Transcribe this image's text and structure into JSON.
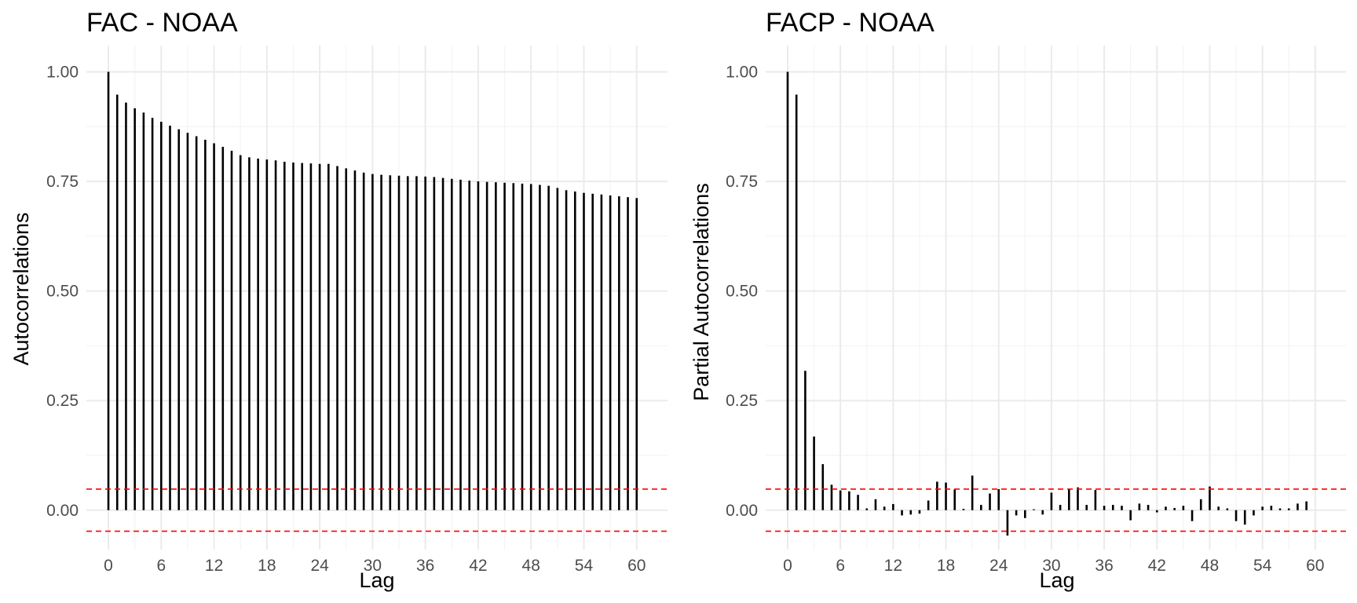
{
  "colors": {
    "bar": "#000000",
    "ci": "#ff0000",
    "grid_major": "#ebebeb",
    "grid_minor": "#f4f4f4",
    "tick_text": "#4d4d4d"
  },
  "chart_data": [
    {
      "type": "bar",
      "title": "FAC - NOAA",
      "xlabel": "Lag",
      "ylabel": "Autocorrelations",
      "xlim": [
        -2.5,
        63.5
      ],
      "ylim": [
        -0.09,
        1.06
      ],
      "x_ticks": [
        0,
        6,
        12,
        18,
        24,
        30,
        36,
        42,
        48,
        54,
        60
      ],
      "x_tick_labels": [
        "0",
        "6",
        "12",
        "18",
        "24",
        "30",
        "36",
        "42",
        "48",
        "54",
        "60"
      ],
      "y_ticks": [
        0,
        0.25,
        0.5,
        0.75,
        1
      ],
      "y_tick_labels": [
        "0.00",
        "0.25",
        "0.50",
        "0.75",
        "1.00"
      ],
      "ci": [
        0.048,
        -0.048
      ],
      "grid": true,
      "lag_start": 0,
      "values": [
        1.0,
        0.948,
        0.93,
        0.917,
        0.907,
        0.895,
        0.886,
        0.877,
        0.869,
        0.861,
        0.853,
        0.845,
        0.837,
        0.829,
        0.82,
        0.81,
        0.805,
        0.802,
        0.8,
        0.798,
        0.795,
        0.793,
        0.792,
        0.791,
        0.79,
        0.79,
        0.785,
        0.78,
        0.775,
        0.77,
        0.767,
        0.765,
        0.764,
        0.763,
        0.762,
        0.762,
        0.761,
        0.76,
        0.758,
        0.756,
        0.754,
        0.752,
        0.75,
        0.749,
        0.748,
        0.747,
        0.746,
        0.745,
        0.744,
        0.742,
        0.74,
        0.735,
        0.73,
        0.727,
        0.724,
        0.722,
        0.72,
        0.718,
        0.716,
        0.714,
        0.712
      ]
    },
    {
      "type": "bar",
      "title": "FACP - NOAA",
      "xlabel": "Lag",
      "ylabel": "Partial Autocorrelations",
      "xlim": [
        -2.5,
        63.5
      ],
      "ylim": [
        -0.09,
        1.06
      ],
      "x_ticks": [
        0,
        6,
        12,
        18,
        24,
        30,
        36,
        42,
        48,
        54,
        60
      ],
      "x_tick_labels": [
        "0",
        "6",
        "12",
        "18",
        "24",
        "30",
        "36",
        "42",
        "48",
        "54",
        "60"
      ],
      "y_ticks": [
        0,
        0.25,
        0.5,
        0.75,
        1
      ],
      "y_tick_labels": [
        "0.00",
        "0.25",
        "0.50",
        "0.75",
        "1.00"
      ],
      "ci": [
        0.048,
        -0.048
      ],
      "grid": true,
      "lag_start": 0,
      "values": [
        1.0,
        0.948,
        0.318,
        0.168,
        0.105,
        0.058,
        0.045,
        0.043,
        0.035,
        0.004,
        0.025,
        0.008,
        0.014,
        -0.012,
        -0.01,
        -0.008,
        0.022,
        0.065,
        0.063,
        0.047,
        0.003,
        0.079,
        0.012,
        0.038,
        0.048,
        -0.058,
        -0.012,
        -0.018,
        0.002,
        -0.01,
        0.04,
        0.012,
        0.047,
        0.052,
        0.012,
        0.046,
        0.01,
        0.012,
        0.01,
        -0.023,
        0.015,
        0.012,
        -0.005,
        0.008,
        0.005,
        0.01,
        -0.025,
        0.025,
        0.054,
        0.008,
        0.004,
        -0.025,
        -0.033,
        -0.012,
        0.008,
        0.01,
        0.004,
        0.004,
        0.015,
        0.02
      ]
    }
  ]
}
